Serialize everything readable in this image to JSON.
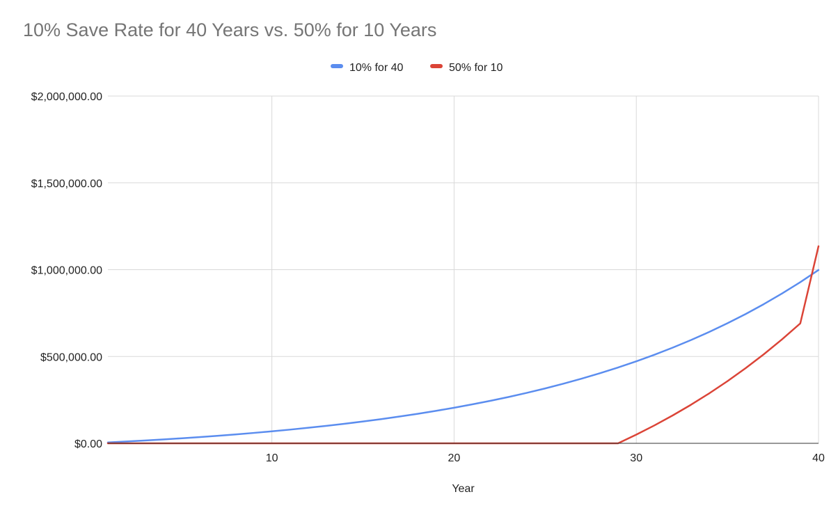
{
  "chart_data": {
    "type": "line",
    "title": "10% Save Rate for 40 Years vs. 50% for 10 Years",
    "xlabel": "Year",
    "ylabel": "",
    "xlim": [
      1,
      40
    ],
    "ylim": [
      0,
      2000000
    ],
    "x_ticks": [
      10,
      20,
      30,
      40
    ],
    "y_ticks": [
      0,
      500000,
      1000000,
      1500000,
      2000000
    ],
    "y_tick_labels": [
      "$0.00",
      "$500,000.00",
      "$1,000,000.00",
      "$1,500,000.00",
      "$2,000,000.00"
    ],
    "grid": true,
    "legend_position": "top",
    "series": [
      {
        "name": "10% for 40",
        "color": "#5b8def",
        "x": [
          1,
          2,
          3,
          4,
          5,
          6,
          7,
          8,
          9,
          10,
          11,
          12,
          13,
          14,
          15,
          16,
          17,
          18,
          19,
          20,
          21,
          22,
          23,
          24,
          25,
          26,
          27,
          28,
          29,
          30,
          31,
          32,
          33,
          34,
          35,
          36,
          37,
          38,
          39,
          40
        ],
        "y": [
          5000,
          10350,
          16075,
          22200,
          28755,
          35768,
          43272,
          51301,
          59892,
          69084,
          78920,
          89444,
          100705,
          112755,
          125647,
          139443,
          154204,
          169998,
          186898,
          204980,
          224329,
          245032,
          267184,
          290887,
          316249,
          343386,
          372423,
          403493,
          436737,
          472309,
          510370,
          551096,
          594673,
          641300,
          691191,
          744574,
          801694,
          862813,
          928209,
          998184
        ]
      },
      {
        "name": "50% for 10",
        "color": "#db4437",
        "x": [
          1,
          29,
          30,
          31,
          32,
          33,
          34,
          35,
          36,
          37,
          38,
          39,
          40
        ],
        "y": [
          0,
          0,
          50000,
          103500,
          160745,
          221997,
          287537,
          357665,
          432701,
          512990,
          598899,
          690822,
          1135000
        ]
      }
    ]
  }
}
